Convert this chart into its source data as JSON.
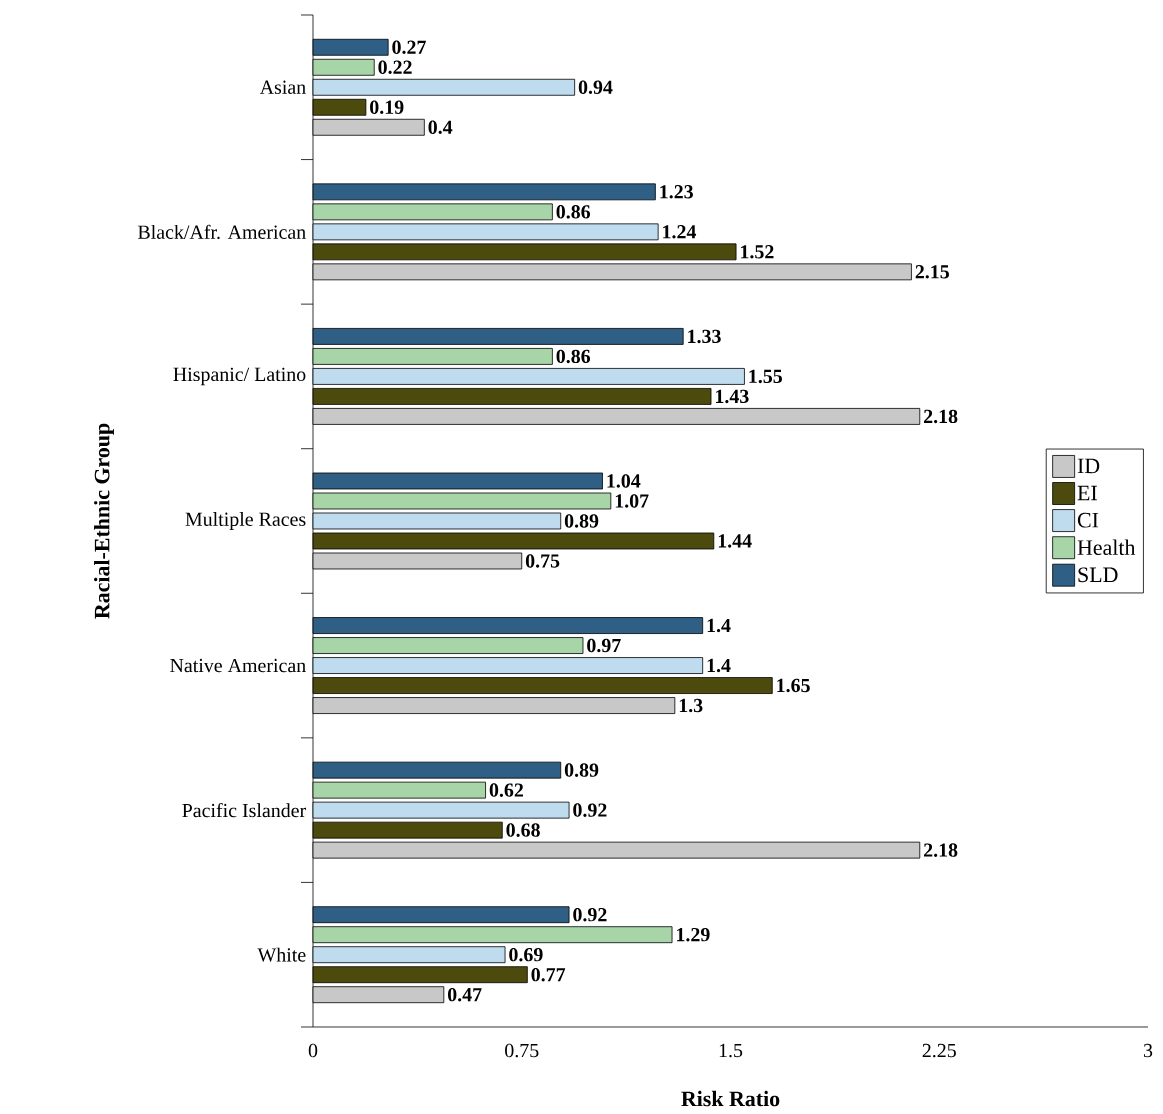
{
  "chart_data": {
    "type": "bar",
    "orientation": "horizontal",
    "xlabel": "Risk Ratio",
    "ylabel": "Racial-Ethnic Group",
    "categories": [
      "Asian",
      "Black/Afr. American",
      "Hispanic/ Latino",
      "Multiple Races",
      "Native American",
      "Pacific Islander",
      "White"
    ],
    "series": [
      {
        "name": "ID",
        "color": "#c8c8c8",
        "values": [
          0.4,
          2.15,
          2.18,
          0.75,
          1.3,
          2.18,
          0.47
        ]
      },
      {
        "name": "EI",
        "color": "#4d4a0e",
        "values": [
          0.19,
          1.52,
          1.43,
          1.44,
          1.65,
          0.68,
          0.77
        ]
      },
      {
        "name": "CI",
        "color": "#bfdcef",
        "values": [
          0.94,
          1.24,
          1.55,
          0.89,
          1.4,
          0.92,
          0.69
        ]
      },
      {
        "name": "Health",
        "color": "#a8d5a8",
        "values": [
          0.22,
          0.86,
          0.86,
          1.07,
          0.97,
          0.62,
          1.29
        ]
      },
      {
        "name": "SLD",
        "color": "#2f5f85",
        "values": [
          0.27,
          1.23,
          1.33,
          1.04,
          1.4,
          0.89,
          0.92
        ]
      }
    ],
    "xlim": [
      0,
      3
    ],
    "xticks": [
      0,
      0.75,
      1.5,
      2.25,
      3
    ],
    "data_labels": true,
    "legend": "right"
  }
}
